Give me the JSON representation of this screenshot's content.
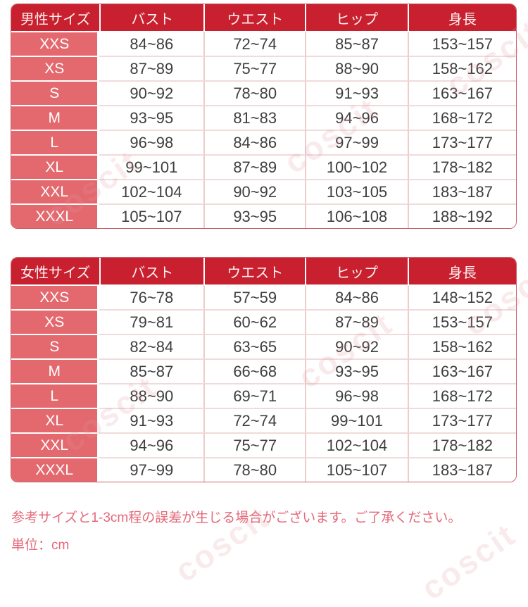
{
  "watermark": {
    "text": "coscit"
  },
  "tables": {
    "men": {
      "title": "男性サイズ",
      "headers": [
        {
          "label": "バスト"
        },
        {
          "label": "ウエスト"
        },
        {
          "label": "ヒップ"
        },
        {
          "label": "身長"
        }
      ],
      "rows": [
        {
          "size": "XXS",
          "bust": "84~86",
          "waist": "72~74",
          "hip": "85~87",
          "height": "153~157"
        },
        {
          "size": "XS",
          "bust": "87~89",
          "waist": "75~77",
          "hip": "88~90",
          "height": "158~162"
        },
        {
          "size": "S",
          "bust": "90~92",
          "waist": "78~80",
          "hip": "91~93",
          "height": "163~167"
        },
        {
          "size": "M",
          "bust": "93~95",
          "waist": "81~83",
          "hip": "94~96",
          "height": "168~172"
        },
        {
          "size": "L",
          "bust": "96~98",
          "waist": "84~86",
          "hip": "97~99",
          "height": "173~177"
        },
        {
          "size": "XL",
          "bust": "99~101",
          "waist": "87~89",
          "hip": "100~102",
          "height": "178~182"
        },
        {
          "size": "XXL",
          "bust": "102~104",
          "waist": "90~92",
          "hip": "103~105",
          "height": "183~187"
        },
        {
          "size": "XXXL",
          "bust": "105~107",
          "waist": "93~95",
          "hip": "106~108",
          "height": "188~192"
        }
      ]
    },
    "women": {
      "title": "女性サイズ",
      "headers": [
        {
          "label": "バスト"
        },
        {
          "label": "ウエスト"
        },
        {
          "label": "ヒップ"
        },
        {
          "label": "身長"
        }
      ],
      "rows": [
        {
          "size": "XXS",
          "bust": "76~78",
          "waist": "57~59",
          "hip": "84~86",
          "height": "148~152"
        },
        {
          "size": "XS",
          "bust": "79~81",
          "waist": "60~62",
          "hip": "87~89",
          "height": "153~157"
        },
        {
          "size": "S",
          "bust": "82~84",
          "waist": "63~65",
          "hip": "90~92",
          "height": "158~162"
        },
        {
          "size": "M",
          "bust": "85~87",
          "waist": "66~68",
          "hip": "93~95",
          "height": "163~167"
        },
        {
          "size": "L",
          "bust": "88~90",
          "waist": "69~71",
          "hip": "96~98",
          "height": "168~172"
        },
        {
          "size": "XL",
          "bust": "91~93",
          "waist": "72~74",
          "hip": "99~101",
          "height": "173~177"
        },
        {
          "size": "XXL",
          "bust": "94~96",
          "waist": "75~77",
          "hip": "102~104",
          "height": "178~182"
        },
        {
          "size": "XXXL",
          "bust": "97~99",
          "waist": "78~80",
          "hip": "105~107",
          "height": "183~187"
        }
      ]
    }
  },
  "notes": {
    "line1": "参考サイズと1-3cm程の誤差が生じる場合がございます。ご了承ください。",
    "line2": "単位：cm"
  },
  "colors": {
    "header_red": "#c8202f",
    "size_cell_pink": "#e3696f",
    "note_pink": "#e4697a",
    "card_border": "#c9606a",
    "divider_pink": "#f1dada",
    "data_text": "#3e3e3e"
  }
}
